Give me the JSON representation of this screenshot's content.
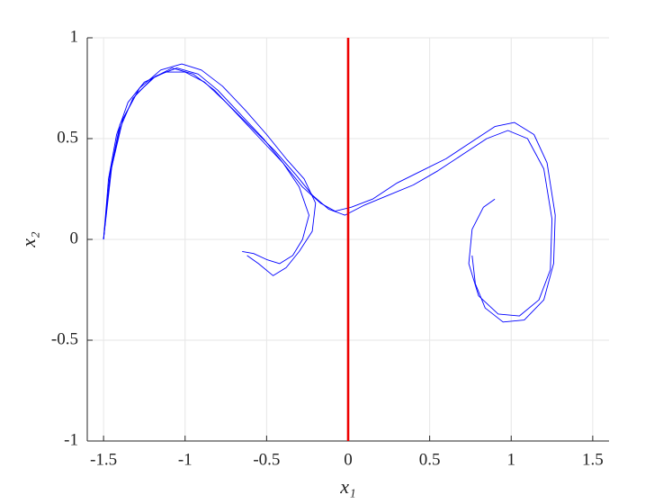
{
  "chart_data": {
    "type": "line",
    "xlabel": "x₁",
    "ylabel": "x₂",
    "xlim": [
      -1.6,
      1.6
    ],
    "ylim": [
      -1,
      1
    ],
    "xticks": [
      -1.5,
      -1,
      -0.5,
      0,
      0.5,
      1,
      1.5
    ],
    "yticks": [
      -1,
      -0.5,
      0,
      0.5,
      1
    ],
    "grid": true,
    "series": [
      {
        "color": "#0000ff",
        "x": [
          -1.5,
          -1.47,
          -1.42,
          -1.35,
          -1.25,
          -1.12,
          -1.0,
          -0.88,
          -0.75,
          -0.6,
          -0.45,
          -0.32,
          -0.22,
          -0.12,
          -0.02,
          0.1,
          0.25,
          0.4,
          0.55,
          0.7,
          0.85,
          0.98,
          1.1,
          1.2,
          1.25,
          1.24,
          1.17,
          1.05,
          0.92,
          0.8,
          0.74,
          0.76,
          0.83,
          0.9
        ],
        "values": [
          0,
          0.3,
          0.52,
          0.68,
          0.78,
          0.83,
          0.83,
          0.78,
          0.68,
          0.56,
          0.44,
          0.32,
          0.22,
          0.15,
          0.12,
          0.17,
          0.22,
          0.27,
          0.34,
          0.42,
          0.5,
          0.54,
          0.5,
          0.35,
          0.1,
          -0.15,
          -0.3,
          -0.38,
          -0.37,
          -0.28,
          -0.12,
          0.05,
          0.16,
          0.2
        ]
      },
      {
        "color": "#0000ff",
        "x": [
          -1.5,
          -1.46,
          -1.4,
          -1.3,
          -1.18,
          -1.05,
          -0.92,
          -0.8,
          -0.66,
          -0.52,
          -0.4,
          -0.3,
          -0.24,
          -0.28,
          -0.34,
          -0.42,
          -0.5,
          -0.58,
          -0.65
        ],
        "values": [
          0,
          0.33,
          0.57,
          0.72,
          0.81,
          0.85,
          0.82,
          0.74,
          0.62,
          0.5,
          0.38,
          0.26,
          0.12,
          0.0,
          -0.08,
          -0.12,
          -0.1,
          -0.07,
          -0.06
        ]
      },
      {
        "color": "#0000ff",
        "x": [
          -1.5,
          -1.46,
          -1.4,
          -1.32,
          -1.2,
          -1.08,
          -0.95,
          -0.82,
          -0.68,
          -0.54,
          -0.4,
          -0.28,
          -0.17,
          -0.08,
          0.02,
          0.15,
          0.3,
          0.45,
          0.6,
          0.75,
          0.9,
          1.02,
          1.14,
          1.22,
          1.27,
          1.26,
          1.2,
          1.08,
          0.95,
          0.84,
          0.78,
          0.76
        ],
        "values": [
          0,
          0.32,
          0.55,
          0.7,
          0.8,
          0.85,
          0.82,
          0.74,
          0.62,
          0.5,
          0.38,
          0.26,
          0.18,
          0.14,
          0.16,
          0.2,
          0.28,
          0.34,
          0.4,
          0.48,
          0.56,
          0.58,
          0.52,
          0.38,
          0.12,
          -0.12,
          -0.3,
          -0.4,
          -0.41,
          -0.34,
          -0.22,
          -0.08
        ]
      },
      {
        "color": "#0000ff",
        "x": [
          -1.5,
          -1.45,
          -1.38,
          -1.28,
          -1.15,
          -1.02,
          -0.9,
          -0.77,
          -0.63,
          -0.5,
          -0.38,
          -0.27,
          -0.2,
          -0.22,
          -0.3,
          -0.38,
          -0.46,
          -0.55,
          -0.62
        ],
        "values": [
          0,
          0.36,
          0.6,
          0.75,
          0.84,
          0.87,
          0.84,
          0.76,
          0.64,
          0.52,
          0.4,
          0.3,
          0.18,
          0.04,
          -0.06,
          -0.14,
          -0.18,
          -0.12,
          -0.08
        ]
      },
      {
        "color": "#ee0000",
        "x": [
          0,
          0
        ],
        "values": [
          -1,
          1
        ]
      }
    ]
  }
}
